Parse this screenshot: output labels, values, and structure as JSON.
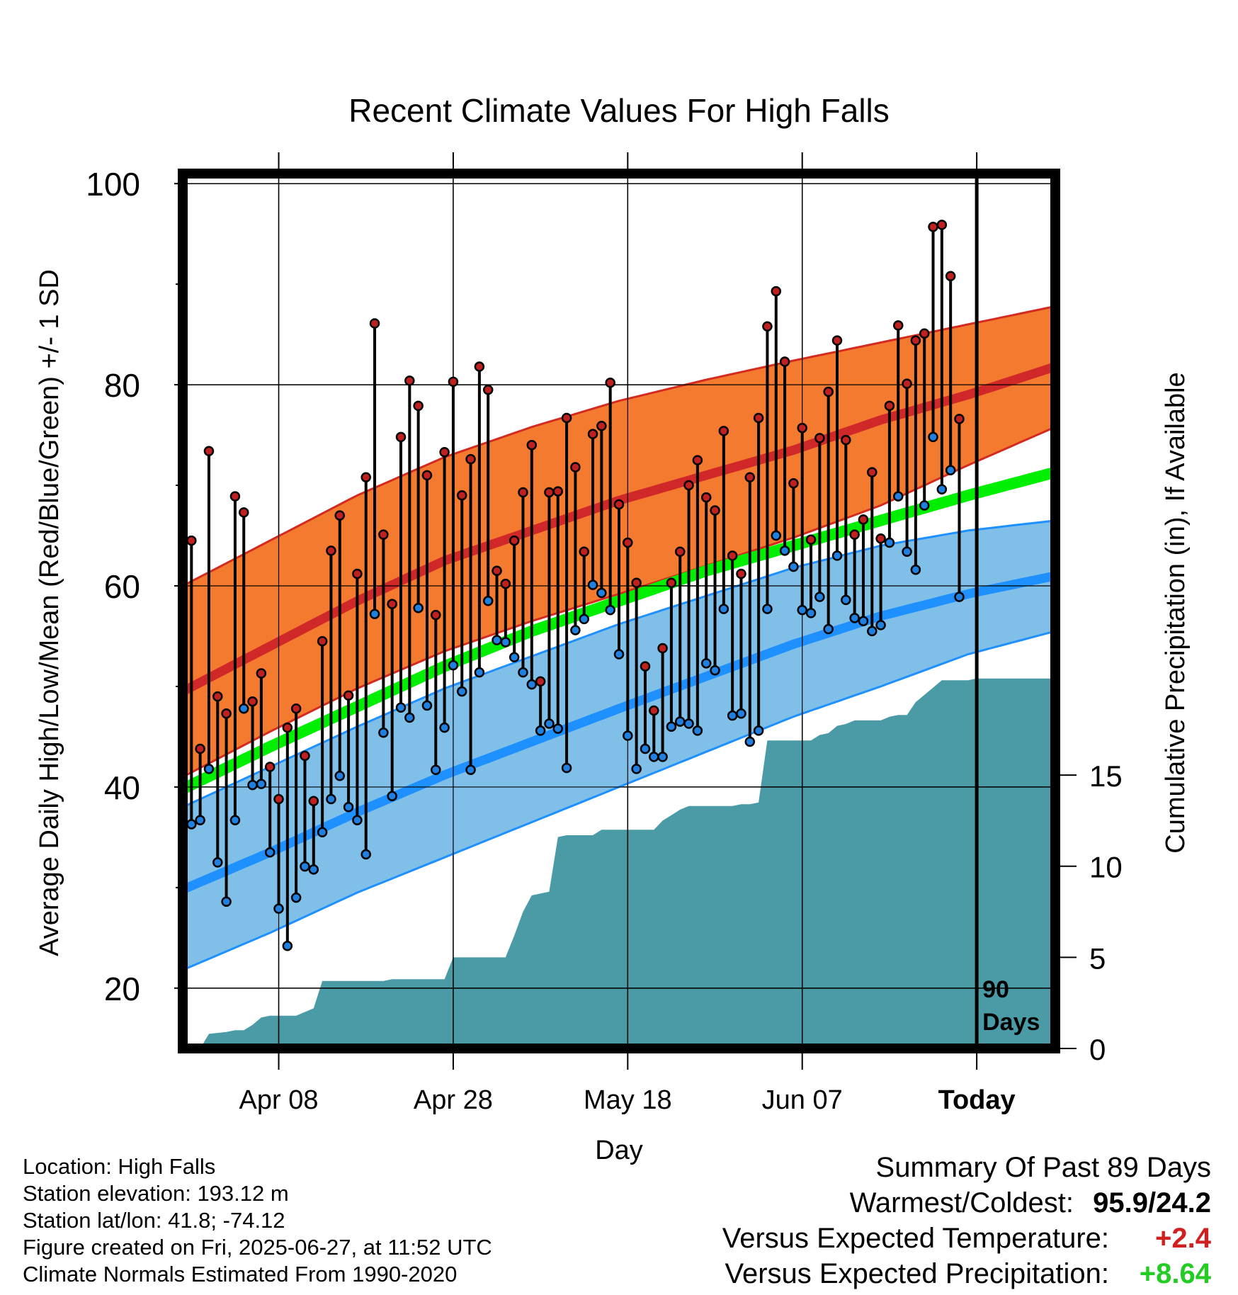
{
  "chart_data": {
    "type": "line",
    "title": "Recent Climate Values For High Falls",
    "xlabel": "Day",
    "ylabel": "Average Daily High/Low/Mean (Red/Blue/Green) +/- 1 SD",
    "y2label": "Cumulative Precipitation (in), If Available",
    "ylim": [
      14,
      101
    ],
    "y2lim": [
      0,
      48
    ],
    "yticks": [
      20,
      40,
      60,
      80,
      100
    ],
    "yminorticks": [
      30,
      50,
      70,
      90
    ],
    "y2ticks": [
      0,
      5,
      10,
      15
    ],
    "x_range_days": [
      -91,
      9
    ],
    "x_ticks": [
      {
        "day": -80,
        "label": "Apr 08"
      },
      {
        "day": -60,
        "label": "Apr 28"
      },
      {
        "day": -40,
        "label": "May 18"
      },
      {
        "day": -20,
        "label": "Jun 07"
      },
      {
        "day": 0,
        "label": "Today"
      }
    ],
    "today_marker": {
      "day": 0,
      "label_line1": "90",
      "label_line2": "Days"
    },
    "normals": {
      "days": [
        -91,
        -81,
        -71,
        -61,
        -51,
        -41,
        -31,
        -21,
        -11,
        -1,
        9
      ],
      "high_mean": [
        49.5,
        54.0,
        58.5,
        62.5,
        65.5,
        68.5,
        71.0,
        73.5,
        76.5,
        79.0,
        81.8
      ],
      "high_upper": [
        60.0,
        64.5,
        69.0,
        72.8,
        75.8,
        78.4,
        80.5,
        82.4,
        84.2,
        86.0,
        87.8
      ],
      "high_lower": [
        41.0,
        45.5,
        49.8,
        53.5,
        56.5,
        59.2,
        62.0,
        64.8,
        68.0,
        72.0,
        75.8
      ],
      "mean": [
        39.8,
        44.0,
        48.0,
        52.0,
        55.5,
        58.5,
        61.5,
        64.0,
        66.5,
        69.0,
        71.3
      ],
      "low_mean": [
        29.8,
        33.5,
        37.5,
        41.2,
        44.5,
        47.8,
        51.0,
        54.2,
        57.0,
        59.2,
        61.0
      ],
      "low_upper": [
        38.0,
        42.0,
        46.0,
        49.8,
        53.0,
        56.2,
        59.0,
        61.8,
        64.0,
        65.5,
        66.5
      ],
      "low_lower": [
        21.8,
        25.5,
        29.5,
        33.0,
        36.5,
        40.0,
        43.5,
        47.0,
        50.0,
        53.2,
        55.5
      ]
    },
    "series": [
      {
        "name": "High",
        "values": [
          64.5,
          43.8,
          73.4,
          49.0,
          47.3,
          68.9,
          67.3,
          48.5,
          51.3,
          42.0,
          38.8,
          45.9,
          47.8,
          43.1,
          38.6,
          54.5,
          63.5,
          67.0,
          49.1,
          61.2,
          70.8,
          86.1,
          65.1,
          58.2,
          74.8,
          80.4,
          77.9,
          71.0,
          57.1,
          73.3,
          80.3,
          69.0,
          72.6,
          81.8,
          79.5,
          61.5,
          60.2,
          64.5,
          69.3,
          74.0,
          50.5,
          69.3,
          69.4,
          76.7,
          71.8,
          63.4,
          75.1,
          75.9,
          80.2,
          68.1,
          64.3,
          60.3,
          52.0,
          47.6,
          53.8,
          60.3,
          63.4,
          70.0,
          72.5,
          68.8,
          67.5,
          75.4,
          63.0,
          61.2,
          70.8,
          76.7,
          85.8,
          89.3,
          82.3,
          70.2,
          75.7,
          64.6,
          74.7,
          79.3,
          84.4,
          74.5,
          65.1,
          66.6,
          71.3,
          64.7,
          77.9,
          85.9,
          80.1,
          84.4,
          85.1,
          95.7,
          95.9,
          90.8,
          76.6
        ]
      },
      {
        "name": "Low",
        "values": [
          36.3,
          36.7,
          41.8,
          32.5,
          28.6,
          36.7,
          47.8,
          40.2,
          40.3,
          33.5,
          27.9,
          24.2,
          29.0,
          32.1,
          31.8,
          35.5,
          38.8,
          41.1,
          38.0,
          36.7,
          33.3,
          57.2,
          45.4,
          39.1,
          47.9,
          46.9,
          57.8,
          48.1,
          41.7,
          45.9,
          52.1,
          49.5,
          41.7,
          51.4,
          58.5,
          54.6,
          54.4,
          52.9,
          51.4,
          50.2,
          45.6,
          46.3,
          45.8,
          41.9,
          55.6,
          56.7,
          60.1,
          59.3,
          57.6,
          53.2,
          45.1,
          41.8,
          43.8,
          43.0,
          43.0,
          46.0,
          46.5,
          46.3,
          45.6,
          52.3,
          51.6,
          57.7,
          47.1,
          47.3,
          44.5,
          45.6,
          57.7,
          65.0,
          63.5,
          61.9,
          57.6,
          57.3,
          58.9,
          55.7,
          63.0,
          58.6,
          56.8,
          56.5,
          55.5,
          56.1,
          64.3,
          68.9,
          63.4,
          61.6,
          68.0,
          74.8,
          69.6,
          71.5,
          58.9
        ]
      }
    ],
    "precip_cumulative": [
      [
        -91,
        0
      ],
      [
        -90,
        0
      ],
      [
        -89,
        0
      ],
      [
        -88,
        0.8
      ],
      [
        -86,
        0.9
      ],
      [
        -85,
        1.0
      ],
      [
        -84,
        1.0
      ],
      [
        -83,
        1.3
      ],
      [
        -82,
        1.7
      ],
      [
        -81,
        1.8
      ],
      [
        -79,
        1.8
      ],
      [
        -78,
        1.8
      ],
      [
        -77,
        2.0
      ],
      [
        -76,
        2.2
      ],
      [
        -75,
        3.7
      ],
      [
        -74,
        3.7
      ],
      [
        -69,
        3.7
      ],
      [
        -68,
        3.7
      ],
      [
        -67,
        3.8
      ],
      [
        -66,
        3.8
      ],
      [
        -62,
        3.8
      ],
      [
        -61,
        3.8
      ],
      [
        -60,
        5.0
      ],
      [
        -59,
        5.0
      ],
      [
        -55,
        5.0
      ],
      [
        -54,
        5.0
      ],
      [
        -53,
        6.2
      ],
      [
        -52,
        7.5
      ],
      [
        -51,
        8.4
      ],
      [
        -50,
        8.5
      ],
      [
        -49,
        8.6
      ],
      [
        -48,
        11.6
      ],
      [
        -47,
        11.7
      ],
      [
        -45,
        11.7
      ],
      [
        -44,
        11.7
      ],
      [
        -43,
        12.0
      ],
      [
        -42,
        12.0
      ],
      [
        -38,
        12.0
      ],
      [
        -37,
        12.0
      ],
      [
        -36,
        12.5
      ],
      [
        -35,
        12.8
      ],
      [
        -34,
        13.1
      ],
      [
        -33,
        13.3
      ],
      [
        -29,
        13.3
      ],
      [
        -28,
        13.3
      ],
      [
        -27,
        13.4
      ],
      [
        -26,
        13.4
      ],
      [
        -25,
        13.5
      ],
      [
        -24,
        16.9
      ],
      [
        -23,
        16.9
      ],
      [
        -20,
        16.9
      ],
      [
        -19,
        16.9
      ],
      [
        -18,
        17.2
      ],
      [
        -17,
        17.3
      ],
      [
        -16,
        17.7
      ],
      [
        -15,
        17.8
      ],
      [
        -14,
        18.0
      ],
      [
        -11,
        18.0
      ],
      [
        -10,
        18.2
      ],
      [
        -9,
        18.3
      ],
      [
        -8,
        18.3
      ],
      [
        -7,
        19.0
      ],
      [
        -6,
        19.4
      ],
      [
        -5,
        19.8
      ],
      [
        -4,
        20.2
      ],
      [
        -3,
        20.2
      ],
      [
        -2,
        20.2
      ],
      [
        -1,
        20.2
      ],
      [
        0,
        20.3
      ],
      [
        9,
        20.3
      ]
    ]
  },
  "footer": {
    "location": "Location: High Falls",
    "elevation": "Station elevation: 193.12 m",
    "latlon": "Station lat/lon: 41.8; -74.12",
    "created": "Figure created on Fri, 2025-06-27, at 11:52 UTC",
    "normals": "Climate Normals Estimated From 1990-2020"
  },
  "summary": {
    "heading": "Summary Of Past 89 Days",
    "warm_label": "Warmest/Coldest:",
    "warm_value": "95.9/24.2",
    "temp_label": "Versus Expected Temperature:",
    "temp_value": "+2.4",
    "precip_label": "Versus Expected Precipitation:",
    "precip_value": "+8.64"
  },
  "colors": {
    "high_band": "#f47a30",
    "high_line": "#d02828",
    "high_band_edge": "#d42b20",
    "mean_line": "#00ee00",
    "low_band": "#80c0e8",
    "low_line": "#1e90ff",
    "low_band_edge": "#1e90ff",
    "precip": "#4a9ba6",
    "high_dot": "#c02020",
    "low_dot": "#2080e0"
  }
}
